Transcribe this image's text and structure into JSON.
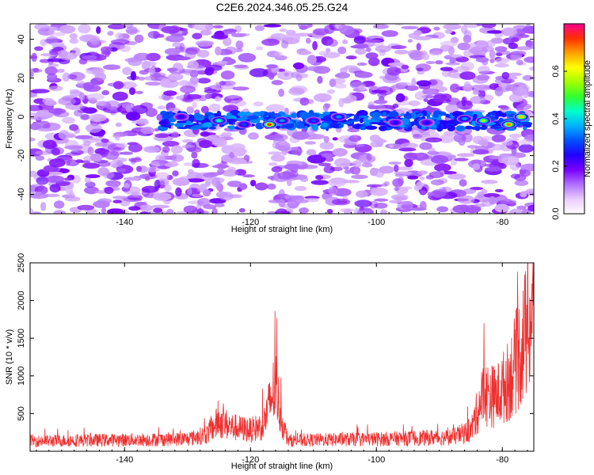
{
  "chart_data": [
    {
      "type": "heatmap",
      "title": "C2E6.2024.346.05.25.G24",
      "xlabel": "Height of straight line (km)",
      "ylabel": "Frequency (Hz)",
      "xlim": [
        -155,
        -75
      ],
      "ylim": [
        -50,
        48
      ],
      "xticks": [
        -140,
        -120,
        -100,
        -80
      ],
      "yticks": [
        -40,
        -20,
        0,
        20,
        40
      ],
      "colorbar": {
        "label": "Normalized spectral amplitude",
        "range": [
          0,
          0.8
        ],
        "ticks": [
          0.0,
          0.2,
          0.4,
          0.6
        ],
        "colors": [
          "#ffffff",
          "#e8ccff",
          "#b070ff",
          "#7a00ff",
          "#2200ff",
          "#0050ff",
          "#00b0ff",
          "#00ffcc",
          "#30ff30",
          "#a0ff00",
          "#ffff00",
          "#ffa000",
          "#ff3000",
          "#ff0090"
        ]
      },
      "hot_spots": [
        {
          "x": -131,
          "y": 0,
          "amp": 0.25
        },
        {
          "x": -125,
          "y": -2,
          "amp": 0.45
        },
        {
          "x": -121,
          "y": -4,
          "amp": 0.3
        },
        {
          "x": -117,
          "y": -4,
          "amp": 0.75
        },
        {
          "x": -115,
          "y": -2,
          "amp": 0.35
        },
        {
          "x": -110,
          "y": -2,
          "amp": 0.3
        },
        {
          "x": -106,
          "y": 0,
          "amp": 0.35
        },
        {
          "x": -97,
          "y": -3,
          "amp": 0.25
        },
        {
          "x": -92,
          "y": -3,
          "amp": 0.25
        },
        {
          "x": -86,
          "y": -1,
          "amp": 0.35
        },
        {
          "x": -83,
          "y": -2,
          "amp": 0.55
        },
        {
          "x": -79,
          "y": -4,
          "amp": 0.7
        },
        {
          "x": -77,
          "y": 0,
          "amp": 0.65
        }
      ]
    },
    {
      "type": "line",
      "xlabel": "Height of straight line (km)",
      "ylabel": "SNR (10 * v/v)",
      "xlim": [
        -155,
        -75
      ],
      "ylim": [
        0,
        2500
      ],
      "xticks": [
        -140,
        -120,
        -100,
        -80
      ],
      "yticks": [
        500,
        1000,
        1500,
        2000,
        2500
      ],
      "color": "#ee3030",
      "profile": [
        {
          "x": -155,
          "y": 160
        },
        {
          "x": -130,
          "y": 190
        },
        {
          "x": -127,
          "y": 260
        },
        {
          "x": -125,
          "y": 470
        },
        {
          "x": -123,
          "y": 380
        },
        {
          "x": -120,
          "y": 330
        },
        {
          "x": -118,
          "y": 400
        },
        {
          "x": -116,
          "y": 1050
        },
        {
          "x": -115,
          "y": 450
        },
        {
          "x": -114,
          "y": 170
        },
        {
          "x": -100,
          "y": 190
        },
        {
          "x": -88,
          "y": 220
        },
        {
          "x": -85,
          "y": 320
        },
        {
          "x": -83,
          "y": 900
        },
        {
          "x": -81,
          "y": 850
        },
        {
          "x": -79,
          "y": 1100
        },
        {
          "x": -77,
          "y": 1600
        },
        {
          "x": -75.5,
          "y": 2100
        }
      ]
    }
  ]
}
